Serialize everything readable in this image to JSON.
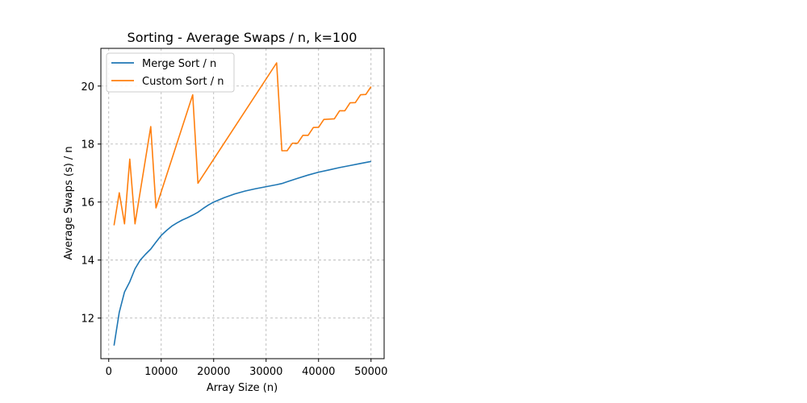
{
  "chart_data": {
    "type": "line",
    "title": "Sorting - Average Swaps / n, k=100",
    "xlabel": "Array Size (n)",
    "ylabel": "Average Swaps (s) / n",
    "xlim": [
      -1500,
      52500
    ],
    "ylim": [
      10.6,
      21.3
    ],
    "xticks": [
      0,
      10000,
      20000,
      30000,
      40000,
      50000
    ],
    "xtick_labels": [
      "0",
      "10000",
      "20000",
      "30000",
      "40000",
      "50000"
    ],
    "yticks": [
      12,
      14,
      16,
      18,
      20
    ],
    "ytick_labels": [
      "12",
      "14",
      "16",
      "18",
      "20"
    ],
    "grid": true,
    "legend_position": "top-left",
    "series": [
      {
        "name": "Merge Sort / n",
        "color": "#1f77b4",
        "x": [
          1000,
          2000,
          3000,
          4000,
          5000,
          6000,
          7000,
          8000,
          9000,
          10000,
          11000,
          12000,
          13000,
          14000,
          15000,
          16000,
          17000,
          18000,
          19000,
          20000,
          22000,
          24000,
          26000,
          28000,
          30000,
          32000,
          33000,
          34000,
          36000,
          38000,
          40000,
          42000,
          44000,
          46000,
          48000,
          50000
        ],
        "y": [
          11.05,
          12.2,
          12.9,
          13.25,
          13.7,
          14.0,
          14.2,
          14.38,
          14.62,
          14.85,
          15.02,
          15.17,
          15.28,
          15.38,
          15.46,
          15.55,
          15.65,
          15.78,
          15.9,
          16.0,
          16.15,
          16.28,
          16.38,
          16.46,
          16.53,
          16.6,
          16.64,
          16.7,
          16.82,
          16.93,
          17.03,
          17.11,
          17.19,
          17.26,
          17.33,
          17.4
        ]
      },
      {
        "name": "Custom Sort / n",
        "color": "#ff7f0e",
        "x": [
          1000,
          2000,
          3000,
          4000,
          5000,
          8000,
          9000,
          16000,
          17000,
          32000,
          33000,
          34000,
          35000,
          36000,
          37000,
          38000,
          39000,
          40000,
          41000,
          42000,
          43000,
          44000,
          45000,
          46000,
          47000,
          48000,
          49000,
          50000
        ],
        "y": [
          15.2,
          16.32,
          15.25,
          17.48,
          15.25,
          18.6,
          15.8,
          19.7,
          16.65,
          20.8,
          17.77,
          17.77,
          18.03,
          18.03,
          18.3,
          18.3,
          18.57,
          18.58,
          18.85,
          18.86,
          18.87,
          19.15,
          19.15,
          19.42,
          19.43,
          19.7,
          19.71,
          19.98
        ]
      }
    ]
  }
}
